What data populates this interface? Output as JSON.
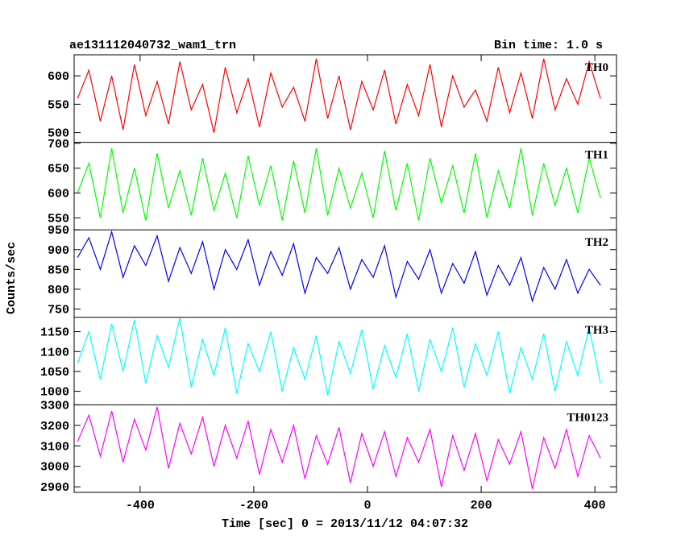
{
  "chart_data": {
    "type": "line",
    "title": "ae131112040732_wam1_trn",
    "subtitle": "Bin time: 1.0 s",
    "x_label": "Time [sec] 0 = 2013/11/12 04:07:32",
    "y_label": "Counts/sec",
    "xlim": [
      -516,
      438
    ],
    "xticks": [
      -400,
      -200,
      0,
      200,
      400
    ],
    "x": [
      -510,
      -490,
      -470,
      -450,
      -430,
      -410,
      -390,
      -370,
      -350,
      -330,
      -310,
      -290,
      -270,
      -250,
      -230,
      -210,
      -190,
      -170,
      -150,
      -130,
      -110,
      -90,
      -70,
      -50,
      -30,
      -10,
      10,
      30,
      50,
      70,
      90,
      110,
      130,
      150,
      170,
      190,
      210,
      230,
      250,
      270,
      290,
      310,
      330,
      350,
      370,
      390,
      410
    ],
    "series": [
      {
        "name": "TH0",
        "color": "#ff0000",
        "ylim": [
          483,
          637
        ],
        "yticks": [
          500,
          550,
          600
        ],
        "values": [
          560,
          610,
          520,
          600,
          505,
          620,
          530,
          590,
          515,
          625,
          540,
          585,
          500,
          615,
          535,
          595,
          510,
          605,
          545,
          580,
          520,
          630,
          525,
          600,
          505,
          590,
          540,
          610,
          515,
          585,
          530,
          620,
          510,
          600,
          545,
          575,
          520,
          615,
          535,
          605,
          525,
          630,
          540,
          595,
          550,
          625,
          560
        ]
      },
      {
        "name": "TH1",
        "color": "#00ff00",
        "ylim": [
          526,
          702
        ],
        "yticks": [
          550,
          600,
          650,
          700
        ],
        "values": [
          600,
          660,
          550,
          690,
          560,
          650,
          545,
          680,
          570,
          645,
          555,
          670,
          565,
          640,
          550,
          675,
          575,
          655,
          545,
          665,
          560,
          690,
          555,
          650,
          570,
          640,
          550,
          685,
          565,
          660,
          545,
          670,
          580,
          655,
          560,
          680,
          550,
          645,
          570,
          690,
          555,
          660,
          575,
          650,
          560,
          670,
          590
        ]
      },
      {
        "name": "TH2",
        "color": "#0000ff",
        "ylim": [
          729,
          950
        ],
        "yticks": [
          750,
          800,
          850,
          900,
          950
        ],
        "values": [
          880,
          930,
          850,
          945,
          830,
          910,
          860,
          935,
          820,
          905,
          840,
          920,
          800,
          900,
          850,
          925,
          810,
          895,
          835,
          915,
          790,
          880,
          840,
          905,
          800,
          875,
          830,
          910,
          780,
          870,
          825,
          900,
          790,
          865,
          815,
          895,
          785,
          860,
          810,
          880,
          770,
          855,
          800,
          875,
          790,
          850,
          810
        ]
      },
      {
        "name": "TH3",
        "color": "#00ffff",
        "ylim": [
          966,
          1186
        ],
        "yticks": [
          1000,
          1050,
          1100,
          1150
        ],
        "values": [
          1070,
          1150,
          1030,
          1170,
          1050,
          1180,
          1020,
          1140,
          1060,
          1185,
          1010,
          1130,
          1040,
          1160,
          995,
          1120,
          1050,
          1150,
          1000,
          1110,
          1030,
          1140,
          990,
          1125,
          1045,
          1155,
          1005,
          1115,
          1035,
          1145,
          1000,
          1130,
          1050,
          1160,
          1010,
          1120,
          1040,
          1150,
          995,
          1110,
          1030,
          1145,
          1000,
          1125,
          1040,
          1160,
          1020
        ]
      },
      {
        "name": "TH0123",
        "color": "#ff00ff",
        "ylim": [
          2873,
          3300
        ],
        "yticks": [
          2900,
          3000,
          3100,
          3200,
          3300
        ],
        "values": [
          3120,
          3250,
          3050,
          3270,
          3020,
          3230,
          3080,
          3290,
          2990,
          3210,
          3060,
          3240,
          3000,
          3200,
          3040,
          3220,
          2960,
          3180,
          3020,
          3200,
          2940,
          3150,
          3010,
          3190,
          2920,
          3160,
          3000,
          3170,
          2950,
          3140,
          3020,
          3180,
          2900,
          3150,
          2980,
          3160,
          2930,
          3130,
          3010,
          3170,
          2890,
          3140,
          2990,
          3180,
          2950,
          3150,
          3040
        ]
      }
    ]
  }
}
